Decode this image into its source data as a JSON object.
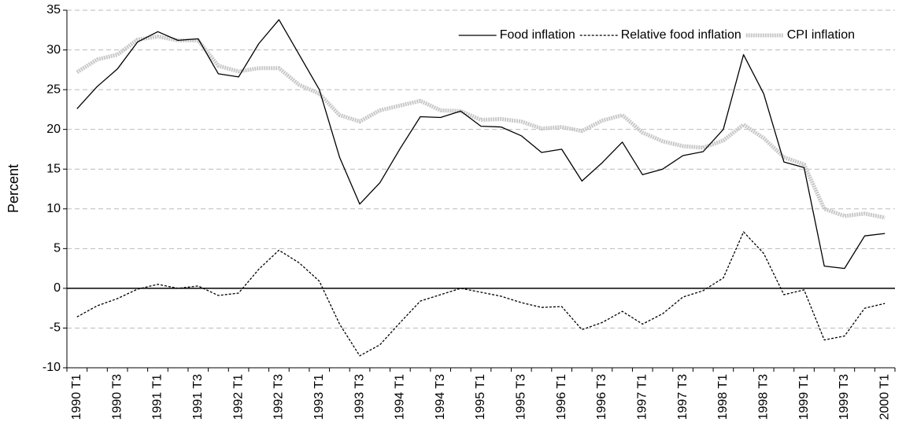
{
  "chart_data": {
    "type": "line",
    "y_label": "Percent",
    "categories": [
      "1990 T1",
      null,
      "1990 T3",
      null,
      "1991 T1",
      null,
      "1991 T3",
      null,
      "1992 T1",
      null,
      "1992 T3",
      null,
      "1993 T1",
      null,
      "1993 T3",
      null,
      "1994 T1",
      null,
      "1994 T3",
      null,
      "1995 T1",
      null,
      "1995 T3",
      null,
      "1996 T1",
      null,
      "1996 T3",
      null,
      "1997 T1",
      null,
      "1997 T3",
      null,
      "1998 T1",
      null,
      "1998 T3",
      null,
      "1999 T1",
      null,
      "1999 T3",
      null,
      "2000 T1"
    ],
    "series": [
      {
        "name": "Food inflation",
        "color": "#000000",
        "line_style": "solid",
        "values": [
          22.6,
          25.4,
          27.6,
          31.0,
          32.3,
          31.2,
          31.4,
          27.0,
          26.6,
          30.8,
          33.8,
          29.4,
          25.0,
          16.5,
          10.6,
          13.3,
          17.6,
          21.6,
          21.5,
          22.3,
          20.4,
          20.3,
          19.2,
          17.1,
          17.5,
          13.5,
          15.8,
          18.4,
          14.3,
          15.0,
          16.7,
          17.2,
          20.0,
          29.4,
          24.5,
          15.9,
          15.2,
          2.8,
          2.5,
          6.6,
          6.9
        ]
      },
      {
        "name": "Relative food inflation",
        "color": "#000000",
        "line_style": "dotted",
        "values": [
          -3.6,
          -2.2,
          -1.3,
          -0.1,
          0.5,
          0.0,
          0.3,
          -0.9,
          -0.6,
          2.4,
          4.8,
          3.2,
          0.9,
          -4.5,
          -8.5,
          -7.1,
          -4.3,
          -1.6,
          -0.8,
          0.0,
          -0.5,
          -1.0,
          -1.8,
          -2.4,
          -2.3,
          -5.2,
          -4.3,
          -2.9,
          -4.5,
          -3.2,
          -1.1,
          -0.3,
          1.3,
          7.1,
          4.4,
          -0.8,
          -0.2,
          -6.5,
          -6.0,
          -2.5,
          -1.9
        ]
      },
      {
        "name": "CPI inflation",
        "color": "#c8c8c8",
        "line_style": "thick",
        "values": [
          27.2,
          28.8,
          29.4,
          31.3,
          31.7,
          31.2,
          31.2,
          28.0,
          27.3,
          27.7,
          27.7,
          25.6,
          24.5,
          21.8,
          21.0,
          22.4,
          23.0,
          23.6,
          22.4,
          22.3,
          21.2,
          21.3,
          21.0,
          20.1,
          20.3,
          19.8,
          21.1,
          21.8,
          19.6,
          18.5,
          17.9,
          17.7,
          18.6,
          20.6,
          18.9,
          16.5,
          15.6,
          10.0,
          9.1,
          9.4,
          8.9
        ]
      }
    ],
    "ylim": [
      -10,
      35
    ],
    "yticks": [
      -10,
      -5,
      0,
      5,
      10,
      15,
      20,
      25,
      30,
      35
    ],
    "grid": true,
    "legend": "upper right"
  }
}
